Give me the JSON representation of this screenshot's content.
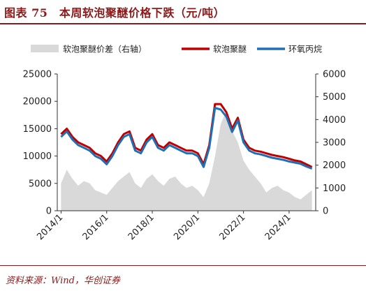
{
  "title": "图表 75　本周软泡聚醚价格下跌（元/吨）",
  "source": "资料来源：Wind，华创证券",
  "chart_data": {
    "type": "line",
    "title": "图表 75　本周软泡聚醚价格下跌（元/吨）",
    "xlabel": "",
    "ylabel": "",
    "x_ticks": [
      "2014/1",
      "2016/1",
      "2018/1",
      "2020/1",
      "2022/1",
      "2024/1"
    ],
    "ylim_left": [
      0,
      25000
    ],
    "y_ticks_left": [
      0,
      5000,
      10000,
      15000,
      20000,
      25000
    ],
    "ylim_right": [
      0,
      6000
    ],
    "y_ticks_right": [
      0,
      1000,
      2000,
      3000,
      4000,
      5000,
      6000
    ],
    "legend_position": "top",
    "grid": false,
    "series": [
      {
        "name": "软泡聚醚价差（右轴）",
        "type": "area",
        "axis": "right",
        "color": "#d9d9d9",
        "x": [
          "2014/1",
          "2014/4",
          "2014/7",
          "2014/10",
          "2015/1",
          "2015/4",
          "2015/7",
          "2015/10",
          "2016/1",
          "2016/4",
          "2016/7",
          "2016/10",
          "2017/1",
          "2017/4",
          "2017/7",
          "2017/10",
          "2018/1",
          "2018/4",
          "2018/7",
          "2018/10",
          "2019/1",
          "2019/4",
          "2019/7",
          "2019/10",
          "2020/1",
          "2020/4",
          "2020/7",
          "2020/10",
          "2021/1",
          "2021/4",
          "2021/7",
          "2021/10",
          "2022/1",
          "2022/4",
          "2022/7",
          "2022/10",
          "2023/1",
          "2023/4",
          "2023/7",
          "2023/10",
          "2024/1",
          "2024/4",
          "2024/7",
          "2024/10",
          "2025/1"
        ],
        "values": [
          1200,
          1800,
          1400,
          1100,
          1300,
          1200,
          900,
          800,
          700,
          1000,
          1300,
          1500,
          1700,
          1200,
          1000,
          1400,
          1600,
          1300,
          1100,
          1400,
          1500,
          1200,
          1000,
          1100,
          900,
          600,
          1200,
          2400,
          3800,
          4400,
          3500,
          3000,
          2200,
          1800,
          1500,
          1200,
          800,
          1000,
          1100,
          900,
          800,
          600,
          500,
          700,
          900
        ]
      },
      {
        "name": "软泡聚醚",
        "type": "line",
        "axis": "left",
        "color": "#c00000",
        "x": [
          "2014/1",
          "2014/4",
          "2014/7",
          "2014/10",
          "2015/1",
          "2015/4",
          "2015/7",
          "2015/10",
          "2016/1",
          "2016/4",
          "2016/7",
          "2016/10",
          "2017/1",
          "2017/4",
          "2017/7",
          "2017/10",
          "2018/1",
          "2018/4",
          "2018/7",
          "2018/10",
          "2019/1",
          "2019/4",
          "2019/7",
          "2019/10",
          "2020/1",
          "2020/4",
          "2020/7",
          "2020/10",
          "2021/1",
          "2021/4",
          "2021/7",
          "2021/10",
          "2022/1",
          "2022/4",
          "2022/7",
          "2022/10",
          "2023/1",
          "2023/4",
          "2023/7",
          "2023/10",
          "2024/1",
          "2024/4",
          "2024/7",
          "2024/10",
          "2025/1"
        ],
        "values": [
          14000,
          15000,
          13500,
          12500,
          12000,
          11500,
          10500,
          10000,
          9000,
          10500,
          12500,
          14000,
          14500,
          11500,
          11000,
          13000,
          14000,
          12000,
          11500,
          12500,
          12000,
          11500,
          11000,
          11000,
          10500,
          8500,
          12000,
          19500,
          19500,
          18000,
          15000,
          17000,
          13000,
          11500,
          11000,
          10800,
          10500,
          10200,
          10000,
          9800,
          9500,
          9200,
          9000,
          8500,
          8000
        ]
      },
      {
        "name": "环氧丙烷",
        "type": "line",
        "axis": "left",
        "color": "#1f6fb5",
        "x": [
          "2014/1",
          "2014/4",
          "2014/7",
          "2014/10",
          "2015/1",
          "2015/4",
          "2015/7",
          "2015/10",
          "2016/1",
          "2016/4",
          "2016/7",
          "2016/10",
          "2017/1",
          "2017/4",
          "2017/7",
          "2017/10",
          "2018/1",
          "2018/4",
          "2018/7",
          "2018/10",
          "2019/1",
          "2019/4",
          "2019/7",
          "2019/10",
          "2020/1",
          "2020/4",
          "2020/7",
          "2020/10",
          "2021/1",
          "2021/4",
          "2021/7",
          "2021/10",
          "2022/1",
          "2022/4",
          "2022/7",
          "2022/10",
          "2023/1",
          "2023/4",
          "2023/7",
          "2023/10",
          "2024/1",
          "2024/4",
          "2024/7",
          "2024/10",
          "2025/1"
        ],
        "values": [
          13500,
          14500,
          13000,
          12000,
          11500,
          11000,
          10000,
          9500,
          8500,
          10000,
          12000,
          13500,
          14000,
          11000,
          10500,
          12500,
          13500,
          11500,
          11000,
          12000,
          11500,
          11000,
          10500,
          10500,
          10000,
          8000,
          11500,
          18800,
          18500,
          17200,
          14400,
          16500,
          12500,
          11000,
          10500,
          10300,
          10000,
          9700,
          9500,
          9300,
          9000,
          8800,
          8600,
          8100,
          7700
        ]
      }
    ]
  }
}
